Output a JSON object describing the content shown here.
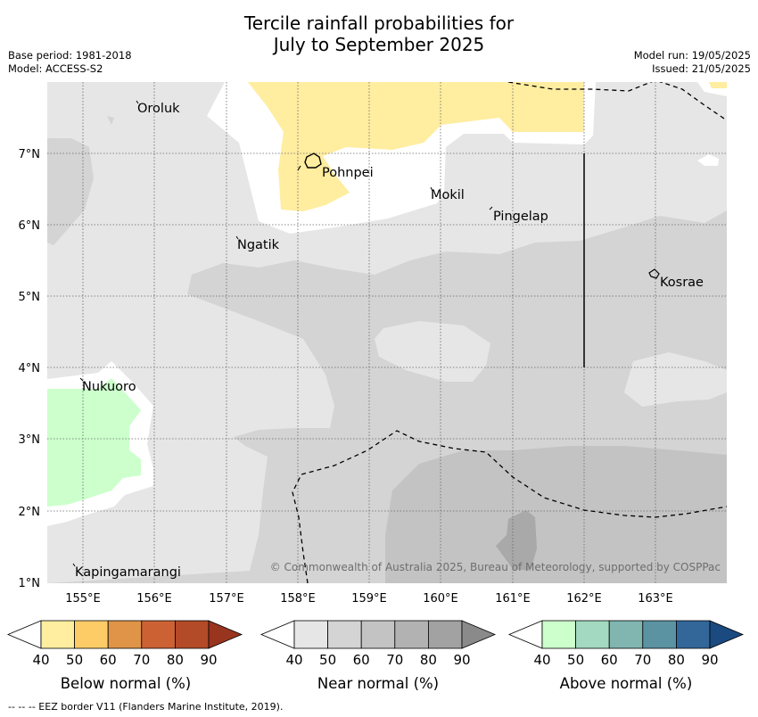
{
  "title": {
    "line1": "Tercile rainfall probabilities for",
    "line2": "July to September 2025"
  },
  "meta_left": {
    "base_period": "Base period: 1981-2018",
    "model": "Model: ACCESS-S2"
  },
  "meta_right": {
    "model_run": "Model run: 19/05/2025",
    "issued": "Issued: 21/05/2025"
  },
  "map": {
    "lat_labels": [
      "7°N",
      "6°N",
      "5°N",
      "4°N",
      "3°N",
      "2°N",
      "1°N"
    ],
    "lon_labels": [
      "155°E",
      "156°E",
      "157°E",
      "158°E",
      "159°E",
      "160°E",
      "161°E",
      "162°E",
      "163°E"
    ],
    "places": {
      "oroluk": "Oroluk",
      "pohnpei": "Pohnpei",
      "mokil": "Mokil",
      "pingelap": "Pingelap",
      "ngatik": "Ngatik",
      "kosrae": "Kosrae",
      "nukuoro": "Nukuoro",
      "kapingamarangi": "Kapingamarangi"
    },
    "copyright": "© Commonwealth of Australia 2025, Bureau of Meteorology, supported by COSPPac"
  },
  "legends": {
    "ticks": [
      "40",
      "50",
      "60",
      "70",
      "80",
      "90"
    ],
    "below": {
      "label": "Below normal (%)",
      "colors": [
        "#ffeda0",
        "#fecc66",
        "#e09448",
        "#cc6234",
        "#b34a28",
        "#99341e"
      ]
    },
    "near": {
      "label": "Near normal (%)",
      "colors": [
        "#e6e6e6",
        "#d4d4d4",
        "#c3c3c3",
        "#b2b2b2",
        "#a2a2a2",
        "#8a8a8a"
      ]
    },
    "above": {
      "label": "Above normal (%)",
      "colors": [
        "#ccffcc",
        "#a3d9c0",
        "#80b5b0",
        "#5b93a3",
        "#336699",
        "#1a4a80"
      ]
    }
  },
  "footer": "--  --  -- EEZ border V11 (Flanders Marine Institute, 2019)."
}
